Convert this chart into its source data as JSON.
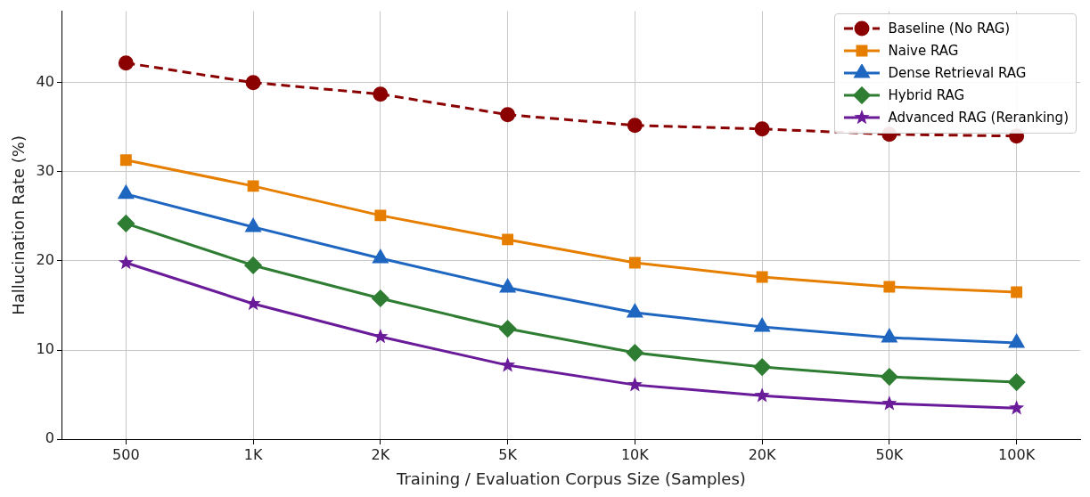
{
  "chart_data": {
    "type": "line",
    "xlabel": "Training / Evaluation Corpus Size (Samples)",
    "ylabel": "Hallucination Rate (%)",
    "categories": [
      "500",
      "1K",
      "2K",
      "5K",
      "10K",
      "20K",
      "50K",
      "100K"
    ],
    "ylim": [
      0,
      48
    ],
    "yticks": [
      0,
      10,
      20,
      30,
      40
    ],
    "grid": true,
    "legend": "top right",
    "series": [
      {
        "name": "Baseline (No RAG)",
        "color": "#8b0000",
        "marker": "circle",
        "line_style": "dashed",
        "values": [
          42.2,
          40.0,
          38.7,
          36.4,
          35.2,
          34.8,
          34.2,
          34.0
        ]
      },
      {
        "name": "Naive RAG",
        "color": "#e67e00",
        "marker": "square",
        "line_style": "solid",
        "values": [
          31.3,
          28.4,
          25.1,
          22.4,
          19.8,
          18.2,
          17.1,
          16.5
        ]
      },
      {
        "name": "Dense Retrieval RAG",
        "color": "#1f66c1",
        "marker": "triangle",
        "line_style": "solid",
        "values": [
          27.5,
          23.8,
          20.3,
          17.0,
          14.2,
          12.6,
          11.4,
          10.8
        ]
      },
      {
        "name": "Hybrid RAG",
        "color": "#2e7d32",
        "marker": "diamond",
        "line_style": "solid",
        "values": [
          24.2,
          19.5,
          15.8,
          12.4,
          9.7,
          8.1,
          7.0,
          6.4
        ]
      },
      {
        "name": "Advanced RAG (Reranking)",
        "color": "#6a1b9a",
        "marker": "star",
        "line_style": "solid",
        "values": [
          19.8,
          15.2,
          11.5,
          8.3,
          6.1,
          4.9,
          4.0,
          3.5
        ]
      }
    ]
  }
}
